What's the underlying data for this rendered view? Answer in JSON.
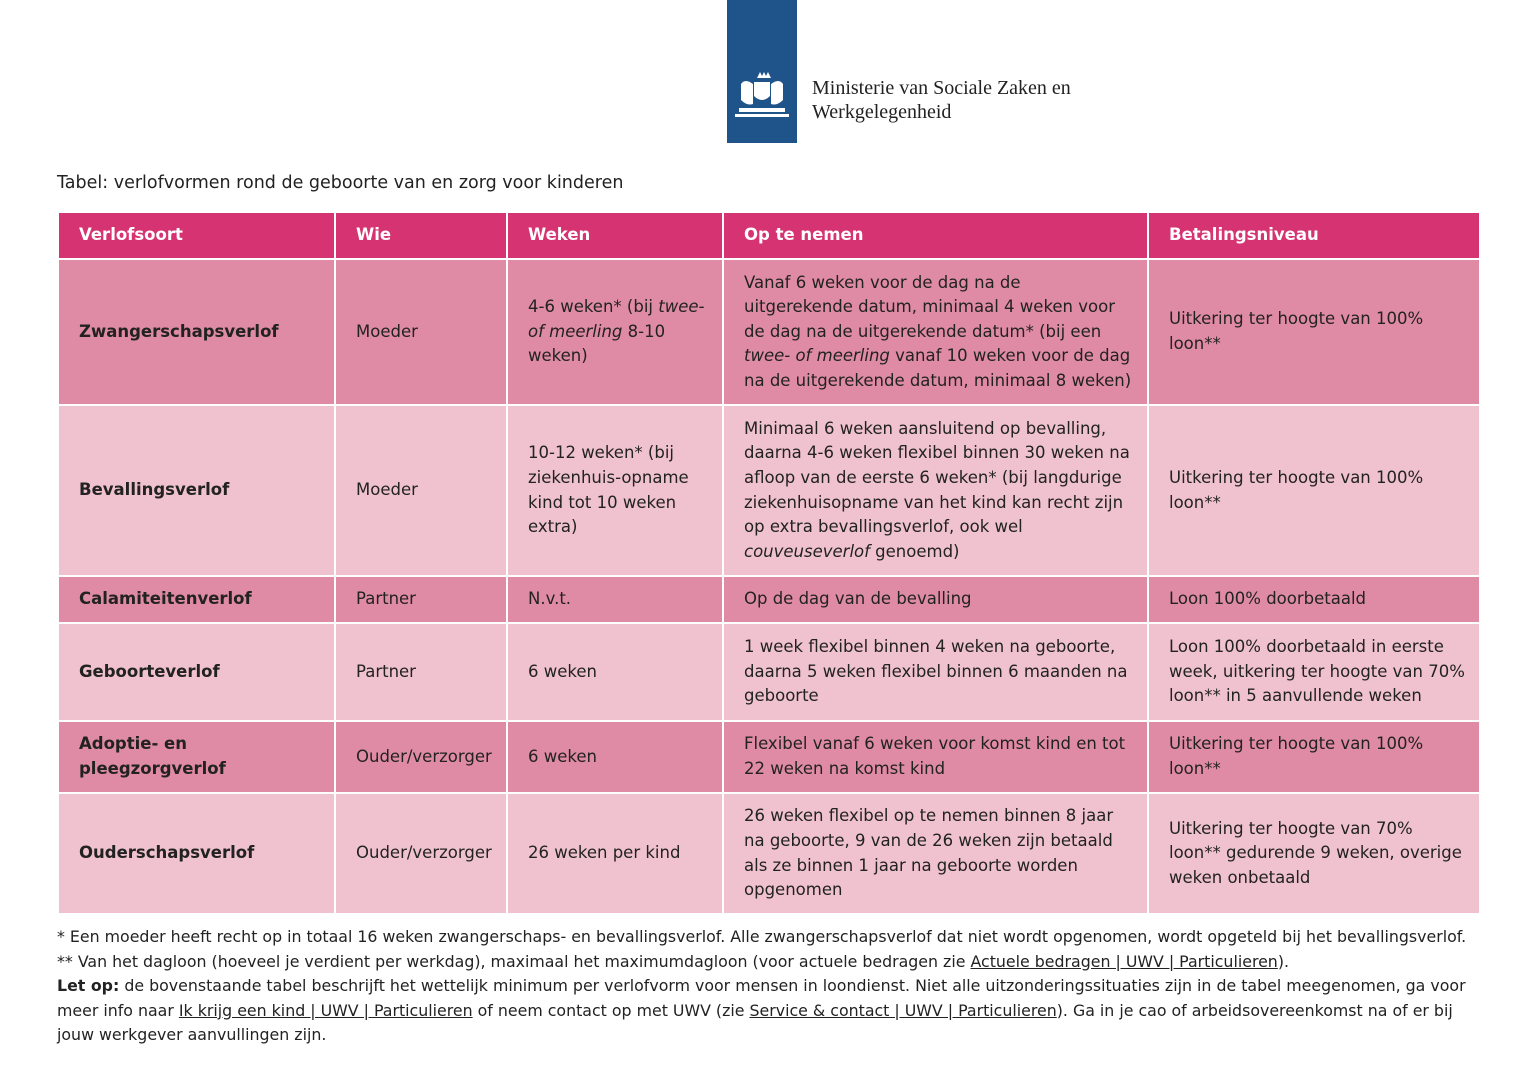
{
  "header": {
    "ministry": [
      "Ministerie van Sociale Zaken en",
      "Werkgelegenheid"
    ]
  },
  "caption": "Tabel: verlofvormen rond de geboorte van en zorg voor kinderen",
  "table": {
    "columns": [
      "Verlofsoort",
      "Wie",
      "Weken",
      "Op te nemen",
      "Betalingsniveau"
    ],
    "rows": [
      [
        "Zwangerschapsverlof",
        "Moeder",
        [
          "4-6 weken* (bij ",
          {
            "text": "twee- of meerling",
            "em": true
          },
          " 8-10 weken)"
        ],
        [
          "Vanaf 6 weken voor de dag na de uitgerekende datum, minimaal 4 weken voor de dag na de uitgerekende datum* (bij een ",
          {
            "text": "twee- of meerling",
            "em": true
          },
          " vanaf 10 weken voor de dag na de uitgerekende datum, minimaal 8 weken)"
        ],
        "Uitkering ter hoogte van 100% loon**"
      ],
      [
        "Bevallingsverlof",
        "Moeder",
        "10-12 weken* (bij ziekenhuis-opname kind tot 10 weken extra)",
        [
          "Minimaal 6 weken aansluitend op bevalling, daarna 4-6 weken flexibel binnen 30 weken na afloop van de eerste 6 weken* (bij langdurige ziekenhuisopname van het kind kan recht zijn op extra bevallingsverlof, ook wel ",
          {
            "text": "couveuseverlof",
            "em": true
          },
          " genoemd)"
        ],
        "Uitkering ter hoogte van 100% loon**"
      ],
      [
        "Calamiteitenverlof",
        "Partner",
        "N.v.t.",
        "Op de dag van de bevalling",
        "Loon 100% doorbetaald"
      ],
      [
        "Geboorteverlof",
        "Partner",
        "6 weken",
        "1 week flexibel binnen 4 weken na geboorte, daarna 5 weken flexibel binnen 6 maanden na geboorte",
        "Loon 100% doorbetaald in eerste week, uitkering ter hoogte van 70% loon** in 5 aanvullende weken"
      ],
      [
        "Adoptie- en pleegzorgverlof",
        "Ouder/verzorger",
        "6 weken",
        "Flexibel vanaf 6 weken voor komst kind en tot 22 weken na komst kind",
        "Uitkering ter hoogte van 100% loon**"
      ],
      [
        "Ouderschapsverlof",
        "Ouder/verzorger",
        "26 weken per kind",
        "26 weken flexibel op te nemen binnen 8 jaar na geboorte, 9 van de 26 weken zijn betaald als ze binnen 1 jaar na geboorte worden opgenomen",
        "Uitkering ter hoogte van 70% loon** gedurende 9 weken, overige weken onbetaald"
      ]
    ]
  },
  "footnotes": [
    [
      "* Een moeder heeft recht op in totaal 16 weken zwangerschaps- en bevallingsverlof. Alle zwangerschapsverlof dat niet wordt opgenomen, wordt opgeteld bij het bevallingsverlof."
    ],
    [
      "** Van het dagloon (hoeveel je verdient per werkdag), maximaal het maximumdagloon (voor actuele bedragen zie ",
      {
        "text": "Actuele bedragen | UWV | Particulieren",
        "link": true
      },
      ")."
    ],
    [
      {
        "text": "Let op:",
        "bold": true
      },
      " de bovenstaande tabel beschrijft het wettelijk minimum per verlofvorm voor mensen in loondienst. Niet alle uitzonderingssituaties zijn in de tabel meegenomen, ga voor meer info naar ",
      {
        "text": "Ik krijg een kind | UWV | Particulieren",
        "link": true
      },
      " of neem contact op met UWV (zie ",
      {
        "text": "Service & contact | UWV | Particulieren",
        "link": true
      },
      "). Ga in je cao of arbeidsovereenkomst na of er bij jouw werkgever aanvullingen zijn."
    ]
  ]
}
